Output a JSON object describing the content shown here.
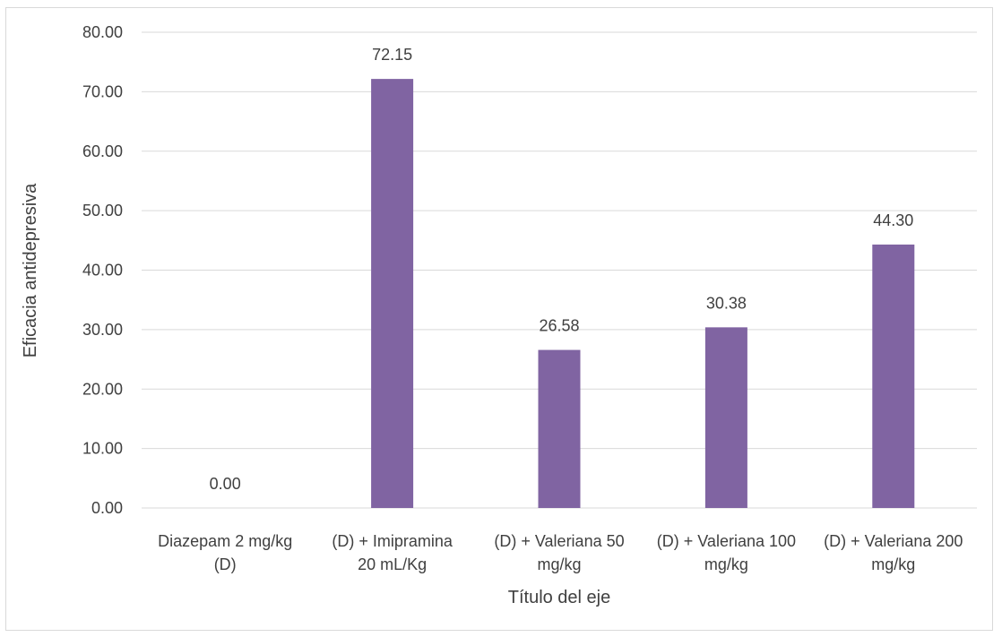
{
  "chart_data": {
    "type": "bar",
    "title": "",
    "xlabel": "Título del eje",
    "ylabel": "Eficacia antidepresiva",
    "ylim": [
      0,
      80
    ],
    "yticks": [
      "0.00",
      "10.00",
      "20.00",
      "30.00",
      "40.00",
      "50.00",
      "60.00",
      "70.00",
      "80.00"
    ],
    "categories": [
      [
        "Diazepam 2 mg/kg",
        "(D)"
      ],
      [
        "(D) + Imipramina",
        "20 mL/Kg"
      ],
      [
        "(D) + Valeriana 50",
        "mg/kg"
      ],
      [
        "(D) + Valeriana 100",
        "mg/kg"
      ],
      [
        "(D) + Valeriana 200",
        "mg/kg"
      ]
    ],
    "values": [
      0.0,
      72.15,
      26.58,
      30.38,
      44.3
    ],
    "data_labels": [
      "0.00",
      "72.15",
      "26.58",
      "30.38",
      "44.30"
    ],
    "bar_color": "#8064a2",
    "grid": true,
    "legend": "none"
  }
}
